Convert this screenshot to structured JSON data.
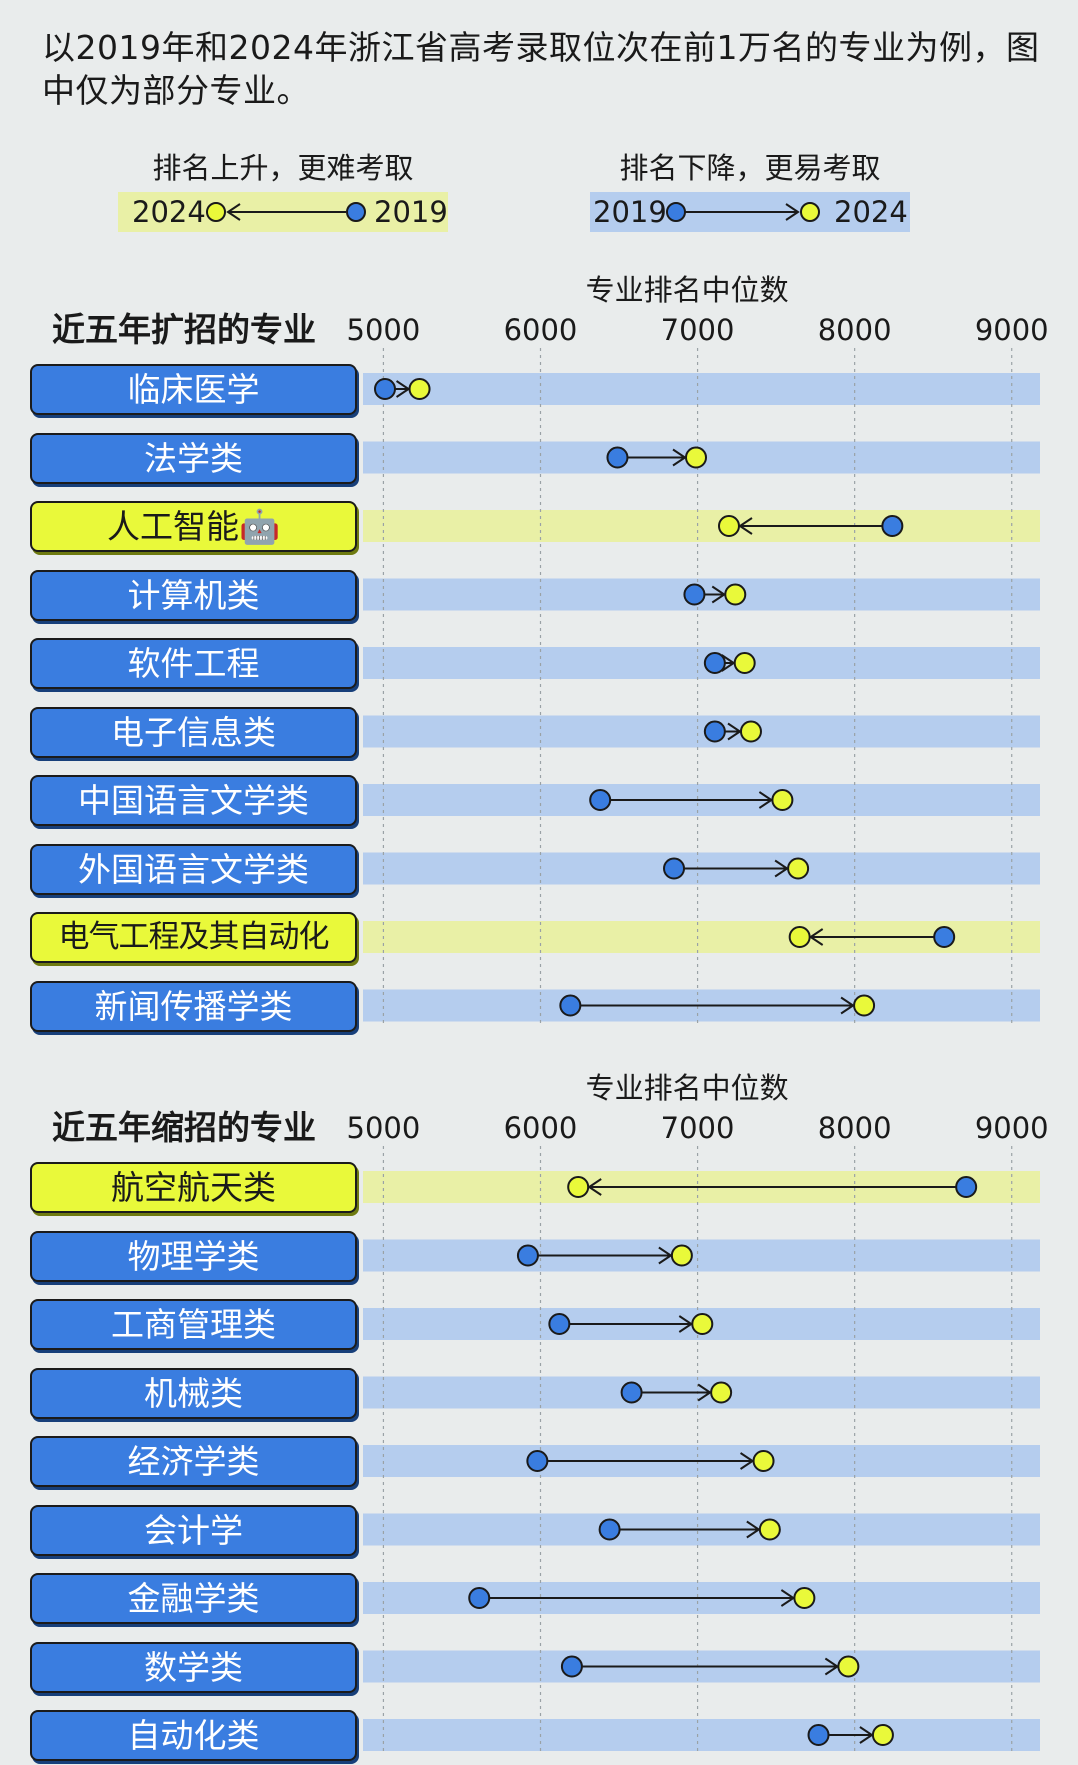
{
  "intro": "以2019年和2024年浙江省高考录取位次在前1万名的专业为例，图中仅为部分专业。",
  "legend": {
    "up": {
      "caption": "排名上升，更难考取",
      "left_year": "2024",
      "right_year": "2019"
    },
    "down": {
      "caption": "排名下降，更易考取",
      "left_year": "2019",
      "right_year": "2024"
    }
  },
  "colors": {
    "background": "#e9ecec",
    "row_down": "#b5cdee",
    "row_up": "#e9f0a6",
    "dot_2019": "#3a7de0",
    "dot_2024": "#e9f93a",
    "label_default": "#3a7de0",
    "label_highlight": "#e9f93a"
  },
  "chart_data": [
    {
      "type": "dumbbell",
      "title": "近五年扩招的专业",
      "xlabel": "专业排名中位数",
      "xlim": [
        4870,
        9180
      ],
      "ticks": [
        5000,
        6000,
        7000,
        8000,
        9000
      ],
      "series": [
        "2019",
        "2024"
      ],
      "rows": [
        {
          "category": "临床医学",
          "v2019": 5010,
          "v2024": 5230,
          "highlight": false
        },
        {
          "category": "法学类",
          "v2019": 6490,
          "v2024": 6990,
          "highlight": false
        },
        {
          "category": "人工智能🤖",
          "v2019": 8240,
          "v2024": 7200,
          "highlight": true
        },
        {
          "category": "计算机类",
          "v2019": 6980,
          "v2024": 7240,
          "highlight": false
        },
        {
          "category": "软件工程",
          "v2019": 7110,
          "v2024": 7300,
          "highlight": false
        },
        {
          "category": "电子信息类",
          "v2019": 7110,
          "v2024": 7340,
          "highlight": false
        },
        {
          "category": "中国语言文学类",
          "v2019": 6380,
          "v2024": 7540,
          "highlight": false
        },
        {
          "category": "外国语言文学类",
          "v2019": 6850,
          "v2024": 7640,
          "highlight": false
        },
        {
          "category": "电气工程及其自动化",
          "v2019": 8570,
          "v2024": 7650,
          "highlight": true
        },
        {
          "category": "新闻传播学类",
          "v2019": 6190,
          "v2024": 8060,
          "highlight": false
        }
      ]
    },
    {
      "type": "dumbbell",
      "title": "近五年缩招的专业",
      "xlabel": "专业排名中位数",
      "xlim": [
        4870,
        9180
      ],
      "ticks": [
        5000,
        6000,
        7000,
        8000,
        9000
      ],
      "series": [
        "2019",
        "2024"
      ],
      "rows": [
        {
          "category": "航空航天类",
          "v2019": 8710,
          "v2024": 6240,
          "highlight": true
        },
        {
          "category": "物理学类",
          "v2019": 5920,
          "v2024": 6900,
          "highlight": false
        },
        {
          "category": "工商管理类",
          "v2019": 6120,
          "v2024": 7030,
          "highlight": false
        },
        {
          "category": "机械类",
          "v2019": 6580,
          "v2024": 7150,
          "highlight": false
        },
        {
          "category": "经济学类",
          "v2019": 5980,
          "v2024": 7420,
          "highlight": false
        },
        {
          "category": "会计学",
          "v2019": 6440,
          "v2024": 7460,
          "highlight": false
        },
        {
          "category": "金融学类",
          "v2019": 5610,
          "v2024": 7680,
          "highlight": false
        },
        {
          "category": "数学类",
          "v2019": 6200,
          "v2024": 7960,
          "highlight": false
        },
        {
          "category": "自动化类",
          "v2019": 7770,
          "v2024": 8180,
          "highlight": false
        }
      ]
    }
  ]
}
